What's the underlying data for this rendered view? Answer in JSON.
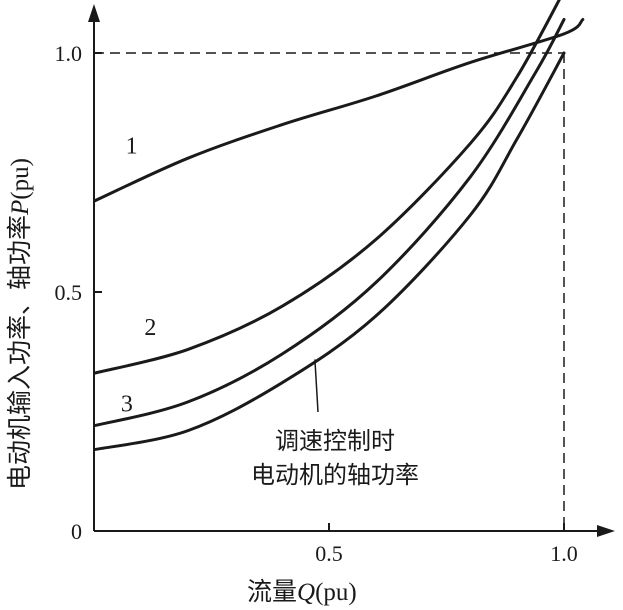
{
  "chart_data": {
    "type": "line",
    "xlabel_parts": {
      "cn": "流量",
      "var": "Q",
      "unit": "(pu)"
    },
    "ylabel_parts": {
      "cn": "电动机输入功率、轴功率",
      "var": "P",
      "unit": "(pu)"
    },
    "xlim": [
      0,
      1.1
    ],
    "ylim": [
      0,
      1.05
    ],
    "x_ticks": [
      {
        "value": 0.5,
        "label": "0.5"
      },
      {
        "value": 1.0,
        "label": "1.0"
      }
    ],
    "y_ticks": [
      {
        "value": 0,
        "label": "0"
      },
      {
        "value": 0.5,
        "label": "0.5"
      },
      {
        "value": 1.0,
        "label": "1.0"
      }
    ],
    "reference_lines": {
      "x": 1.0,
      "y": 1.0,
      "style": "dashed"
    },
    "series": [
      {
        "name": "1",
        "x": [
          0,
          0.2,
          0.4,
          0.6,
          0.8,
          1.0,
          1.04
        ],
        "y": [
          0.69,
          0.78,
          0.85,
          0.91,
          0.98,
          1.04,
          1.07
        ]
      },
      {
        "name": "2",
        "x": [
          0,
          0.2,
          0.4,
          0.6,
          0.8,
          0.9,
          1.0
        ],
        "y": [
          0.33,
          0.38,
          0.47,
          0.61,
          0.81,
          0.95,
          1.13
        ]
      },
      {
        "name": "3",
        "x": [
          0,
          0.2,
          0.4,
          0.6,
          0.8,
          0.94,
          1.0
        ],
        "y": [
          0.22,
          0.27,
          0.37,
          0.52,
          0.74,
          0.96,
          1.07
        ]
      },
      {
        "x": [
          0,
          0.2,
          0.4,
          0.6,
          0.8,
          0.9,
          1.0
        ],
        "y": [
          0.17,
          0.21,
          0.31,
          0.45,
          0.66,
          0.82,
          1.0
        ]
      }
    ],
    "annotation": {
      "lines": [
        "调速控制时",
        "电动机的轴功率"
      ],
      "points_to_x": 0.47
    }
  }
}
